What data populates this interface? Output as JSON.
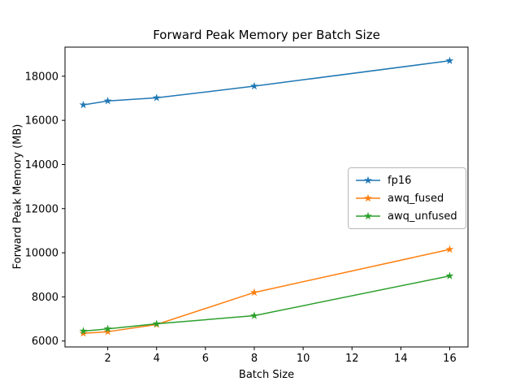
{
  "chart_data": {
    "type": "line",
    "title": "Forward Peak Memory per Batch Size",
    "xlabel": "Batch Size",
    "ylabel": "Forward Peak Memory (MB)",
    "x": [
      1,
      2,
      4,
      8,
      16
    ],
    "series": [
      {
        "name": "fp16",
        "color": "#1f77b4",
        "marker": "star",
        "values": [
          16700,
          16880,
          17020,
          17550,
          18700
        ]
      },
      {
        "name": "awq_fused",
        "color": "#ff7f0e",
        "marker": "star",
        "values": [
          6350,
          6420,
          6750,
          8200,
          10150
        ]
      },
      {
        "name": "awq_unfused",
        "color": "#2ca02c",
        "marker": "star",
        "values": [
          6450,
          6550,
          6780,
          7150,
          8950
        ]
      }
    ],
    "xticks": [
      2,
      4,
      6,
      8,
      10,
      12,
      14,
      16
    ],
    "yticks": [
      6000,
      8000,
      10000,
      12000,
      14000,
      16000,
      18000
    ],
    "xlim": [
      0.25,
      16.75
    ],
    "ylim": [
      5732,
      19318
    ],
    "grid": false,
    "legend_position": "center right",
    "frame_color": "#000000",
    "background_color": "#ffffff"
  }
}
